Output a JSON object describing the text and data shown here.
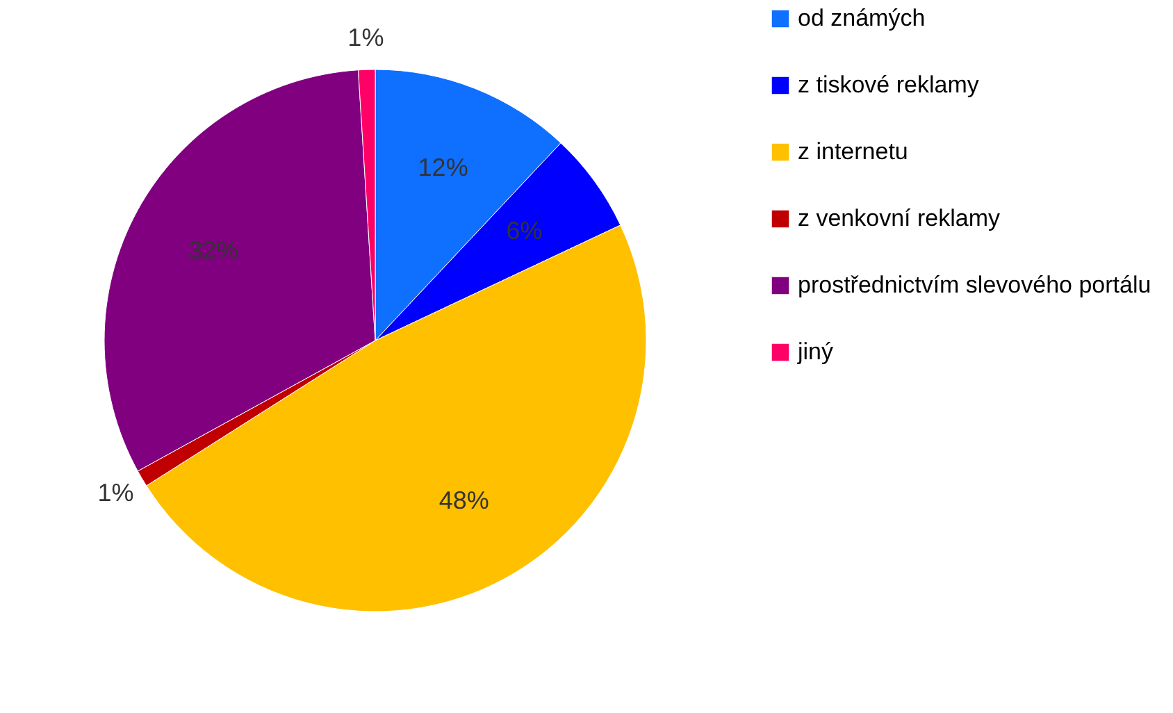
{
  "chart_data": {
    "type": "pie",
    "categories": [
      "od známých",
      "z tiskové reklamy",
      "z internetu",
      "z venkovní reklamy",
      "prostřednictvím slevového portálu",
      "jiný"
    ],
    "values": [
      12,
      6,
      48,
      1,
      32,
      1
    ],
    "colors": [
      "#0f6fff",
      "#0000ff",
      "#ffc000",
      "#c00000",
      "#800080",
      "#ff0066"
    ],
    "value_labels": [
      "12%",
      "6%",
      "48%",
      "1%",
      "32%",
      "1%"
    ],
    "legend": "right"
  }
}
